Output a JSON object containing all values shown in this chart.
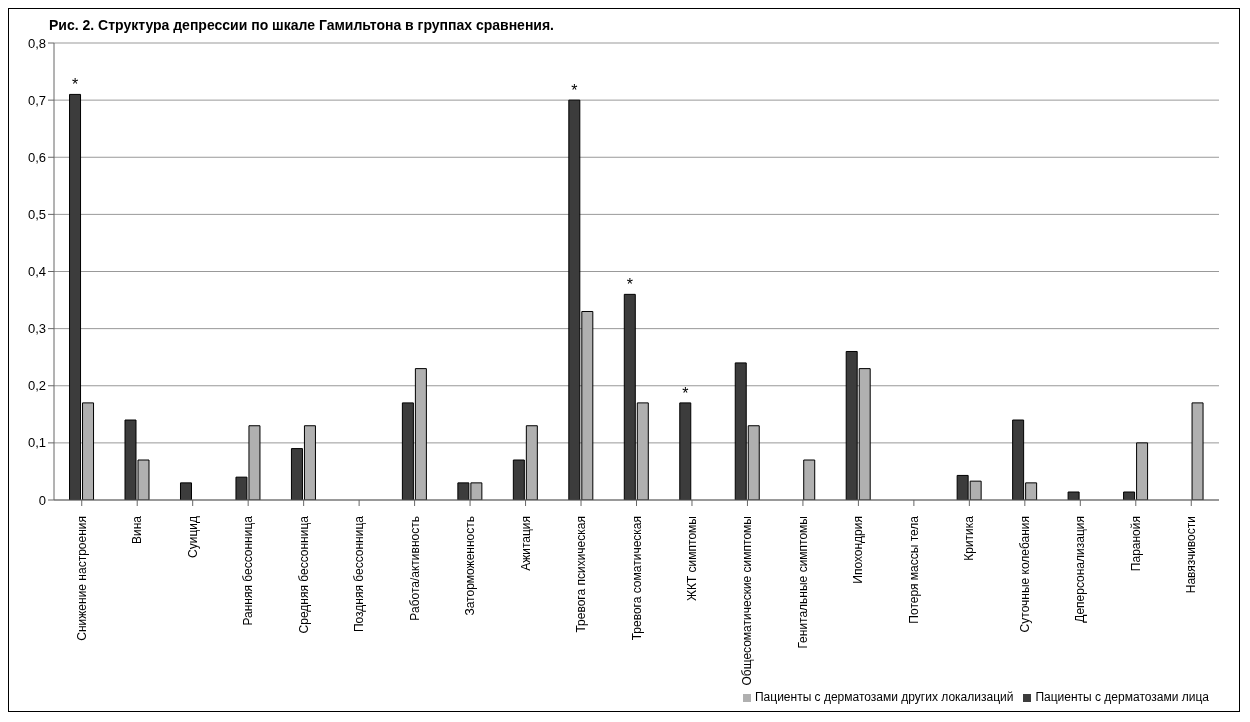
{
  "chart_data": {
    "type": "bar",
    "title": "Рис. 2. Структура депрессии по шкале Гамильтона в группах сравнения.",
    "categories": [
      "Снижение настроения",
      "Вина",
      "Суицид",
      "Ранняя бессонница",
      "Средняя бессонница",
      "Поздняя бессонница",
      "Работа/активность",
      "Заторможенность",
      "Ажитация",
      "Тревога психическая",
      "Тревога соматическая",
      "ЖКТ симптомы",
      "Общесоматические симптомы",
      "Генитальные симптомы",
      "Ипохондрия",
      "Потеря массы тела",
      "Критика",
      "Суточные колебания",
      "Деперсонализация",
      "Паранойя",
      "Навязчивости"
    ],
    "series": [
      {
        "name": "Пациенты с дерматозами лица",
        "color": "#3c3c3c",
        "values": [
          0.71,
          0.14,
          0.03,
          0.04,
          0.09,
          0,
          0.17,
          0.03,
          0.07,
          0.7,
          0.36,
          0.17,
          0.24,
          0,
          0.26,
          0,
          0.043,
          0.14,
          0.014,
          0.014,
          0
        ]
      },
      {
        "name": "Пациенты с дерматозами других локализаций",
        "color": "#b0b0b0",
        "values": [
          0.17,
          0.07,
          0,
          0.13,
          0.13,
          0,
          0.23,
          0.03,
          0.13,
          0.33,
          0.17,
          0,
          0.13,
          0.07,
          0.23,
          0,
          0.033,
          0.03,
          0,
          0.1,
          0.17
        ]
      }
    ],
    "ylim": [
      0,
      0.8
    ],
    "yticks": [
      {
        "value": 0,
        "label": "0"
      },
      {
        "value": 0.1,
        "label": "0,1"
      },
      {
        "value": 0.2,
        "label": "0,2"
      },
      {
        "value": 0.3,
        "label": "0,3"
      },
      {
        "value": 0.4,
        "label": "0,4"
      },
      {
        "value": 0.5,
        "label": "0,5"
      },
      {
        "value": 0.6,
        "label": "0,6"
      },
      {
        "value": 0.7,
        "label": "0,7"
      },
      {
        "value": 0.8,
        "label": "0,8"
      }
    ],
    "grid": "y",
    "legend": "bottom right",
    "annotations": [
      {
        "text": "*",
        "x": "Снижение настроения",
        "y": 0.71
      },
      {
        "text": "*",
        "x": "Тревога психическая",
        "y": 0.7
      },
      {
        "text": "*",
        "x": "Тревога соматическая",
        "y": 0.36
      },
      {
        "text": "*",
        "x": "ЖКТ симптомы",
        "y": 0.17
      }
    ]
  }
}
